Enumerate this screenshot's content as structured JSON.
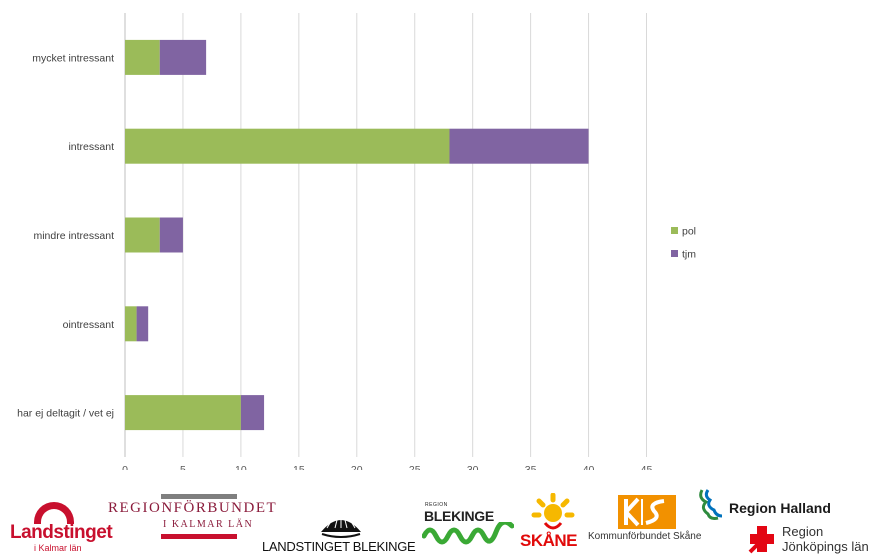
{
  "chart_data": {
    "type": "bar",
    "orientation": "horizontal",
    "stacked": true,
    "categories": [
      "mycket intressant",
      "intressant",
      "mindre intressant",
      "ointressant",
      "har ej deltagit / vet ej"
    ],
    "series": [
      {
        "name": "pol",
        "color": "#9bbb59",
        "values": [
          3,
          28,
          3,
          1,
          10
        ]
      },
      {
        "name": "tjm",
        "color": "#8064a2",
        "values": [
          4,
          12,
          2,
          1,
          2
        ]
      }
    ],
    "xlim": [
      0,
      45
    ],
    "xticks": [
      0,
      5,
      10,
      15,
      20,
      25,
      30,
      35,
      40,
      45
    ],
    "title": "",
    "xlabel": "",
    "ylabel": "",
    "grid": "vertical",
    "legend_position": "right"
  },
  "logos": {
    "kalmar_landsting": {
      "name": "Landstinget",
      "sub": "i Kalmar län",
      "color": "#c8102e"
    },
    "regionforbundet": {
      "name": "REGIONFÖRBUNDET",
      "sub": "I KALMAR LÄN",
      "color": "#8b1c3c"
    },
    "landstinget_blekinge": {
      "name": "LANDSTINGET BLEKINGE"
    },
    "region_blekinge": {
      "pre": "REGION",
      "name": "BLEKINGE",
      "wave_color": "#3aa935"
    },
    "region_skane": {
      "pre": "REGION",
      "name": "SKÅNE",
      "color": "#e10a0a",
      "sun_color": "#f6b800"
    },
    "kommunforbundet_skane": {
      "name": "Kommunförbundet Skåne",
      "color": "#f29100"
    },
    "region_halland": {
      "name": "Region Halland",
      "color": "#2e8b3e",
      "accent": "#0072bc"
    },
    "region_jonkoping": {
      "line1": "Region",
      "line2": "Jönköpings län",
      "color": "#e30613"
    }
  }
}
